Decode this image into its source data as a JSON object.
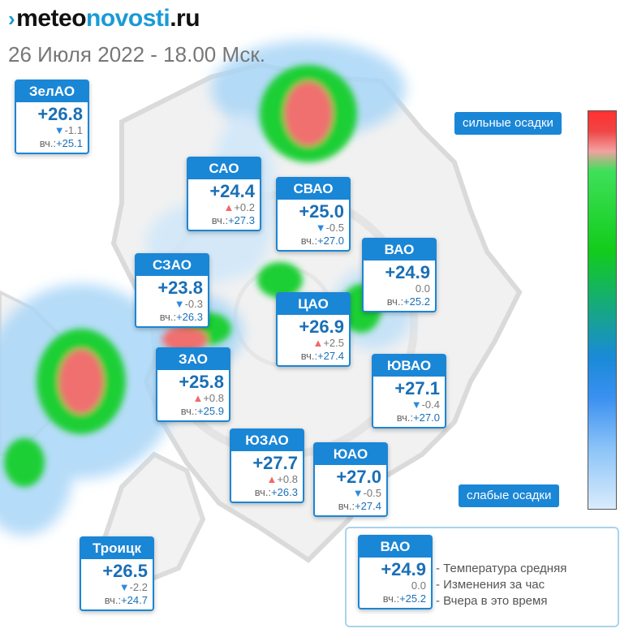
{
  "header": {
    "logo_meteo": "meteo",
    "logo_novosti": "novosti",
    "logo_ru": ".ru",
    "subtitle": "26 Июля 2022 - 18.00 Мск."
  },
  "yesterday_label": "вч.:",
  "colors": {
    "accent": "#1a86d6",
    "temp": "#1a6fb6",
    "up": "#f06a6a",
    "down": "#2a8ae0"
  },
  "districts": [
    {
      "id": "zelao",
      "name": "ЗелАО",
      "temp": "+26.8",
      "trend": "down",
      "delta": "-1.1",
      "yesterday": "+25.1"
    },
    {
      "id": "sao",
      "name": "САО",
      "temp": "+24.4",
      "trend": "up",
      "delta": "+0.2",
      "yesterday": "+27.3"
    },
    {
      "id": "svao",
      "name": "СВАО",
      "temp": "+25.0",
      "trend": "down",
      "delta": "-0.5",
      "yesterday": "+27.0"
    },
    {
      "id": "vao",
      "name": "ВАО",
      "temp": "+24.9",
      "trend": "none",
      "delta": "0.0",
      "yesterday": "+25.2"
    },
    {
      "id": "szao",
      "name": "СЗАО",
      "temp": "+23.8",
      "trend": "down",
      "delta": "-0.3",
      "yesterday": "+26.3"
    },
    {
      "id": "cao",
      "name": "ЦАО",
      "temp": "+26.9",
      "trend": "up",
      "delta": "+2.5",
      "yesterday": "+27.4"
    },
    {
      "id": "zao",
      "name": "ЗАО",
      "temp": "+25.8",
      "trend": "up",
      "delta": "+0.8",
      "yesterday": "+25.9"
    },
    {
      "id": "yuvao",
      "name": "ЮВАО",
      "temp": "+27.1",
      "trend": "down",
      "delta": "-0.4",
      "yesterday": "+27.0"
    },
    {
      "id": "yuzao",
      "name": "ЮЗАО",
      "temp": "+27.7",
      "trend": "up",
      "delta": "+0.8",
      "yesterday": "+26.3"
    },
    {
      "id": "yuao",
      "name": "ЮАО",
      "temp": "+27.0",
      "trend": "down",
      "delta": "-0.5",
      "yesterday": "+27.4"
    },
    {
      "id": "troitsk",
      "name": "Троицк",
      "temp": "+26.5",
      "trend": "down",
      "delta": "-2.2",
      "yesterday": "+24.7"
    }
  ],
  "scale": {
    "strong_label": "сильные осадки",
    "weak_label": "слабые осадки"
  },
  "legend": {
    "card": {
      "name": "ВАО",
      "temp": "+24.9",
      "trend": "none",
      "delta": "0.0",
      "yesterday": "+25.2"
    },
    "row1": "- Температура средняя",
    "row2": "- Изменения за час",
    "row3": "- Вчера в это время"
  }
}
